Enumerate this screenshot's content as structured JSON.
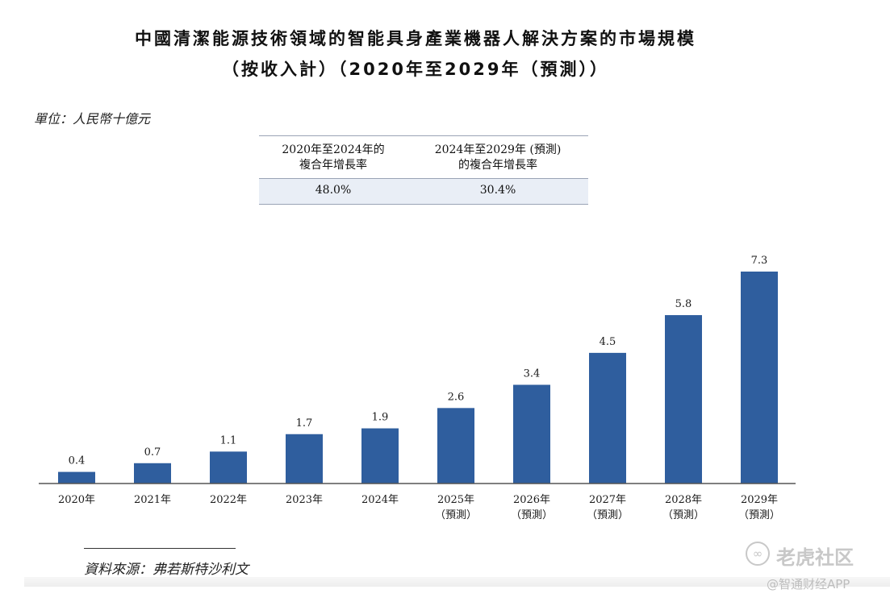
{
  "chart_data": {
    "type": "bar",
    "title": "中國清潔能源技術領域的智能具身產業機器人解決方案的市場規模",
    "subtitle": "（按收入計）（2020年至2029年（預測））",
    "unit_label": "單位：人民幣十億元",
    "categories": [
      {
        "year": "2020年",
        "note": ""
      },
      {
        "year": "2021年",
        "note": ""
      },
      {
        "year": "2022年",
        "note": ""
      },
      {
        "year": "2023年",
        "note": ""
      },
      {
        "year": "2024年",
        "note": ""
      },
      {
        "year": "2025年",
        "note": "（預測）"
      },
      {
        "year": "2026年",
        "note": "（預測）"
      },
      {
        "year": "2027年",
        "note": "（預測）"
      },
      {
        "year": "2028年",
        "note": "（預測）"
      },
      {
        "year": "2029年",
        "note": "（預測）"
      }
    ],
    "values": [
      0.4,
      0.7,
      1.1,
      1.7,
      1.9,
      2.6,
      3.4,
      4.5,
      5.8,
      7.3
    ],
    "value_labels": [
      "0.4",
      "0.7",
      "1.1",
      "1.7",
      "1.9",
      "2.6",
      "3.4",
      "4.5",
      "5.8",
      "7.3"
    ],
    "ylim": [
      0,
      7.3
    ],
    "grid": false,
    "legend": "none",
    "bar_color": "#2f5e9e"
  },
  "cagr_table": {
    "headers": [
      [
        "2020年至2024年的",
        "複合年增長率"
      ],
      [
        "2024年至2029年 (預測)",
        "的複合年增長率"
      ]
    ],
    "values": [
      "48.0%",
      "30.4%"
    ]
  },
  "source": "資料來源：弗若斯特沙利文",
  "watermark": {
    "text": "老虎社区",
    "app": "@智通财经APP"
  }
}
